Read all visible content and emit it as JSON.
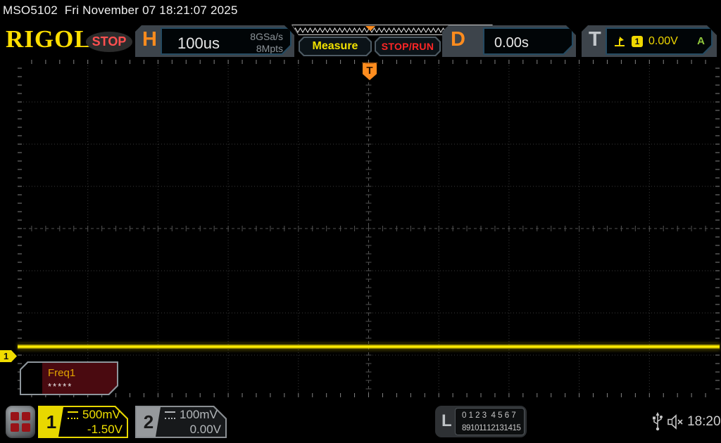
{
  "window": {
    "title": "MSO5102  Fri November 07 18:21:07 2025"
  },
  "header": {
    "brand": "RIGOL",
    "acq_status": "STOP",
    "horizontal": {
      "label": "H",
      "timebase": "100us",
      "sample_rate": "8GSa/s",
      "mem_depth": "8Mpts"
    },
    "measure_button": "Measure",
    "stoprun_button": "STOP/RUN",
    "delay": {
      "label": "D",
      "value": "0.00s"
    },
    "trigger": {
      "label": "T",
      "slope_icon": "rising-edge",
      "source_badge": "1",
      "level": "0.00V",
      "mode": "A",
      "indicator": "T"
    }
  },
  "graticule": {
    "h_divs": 10,
    "v_divs": 8,
    "trace": {
      "channel": 1,
      "shape": "flat-noisy-dc-line"
    }
  },
  "measurement_panel": {
    "title": "Freq1",
    "value": "*****"
  },
  "channel1": {
    "number": "1",
    "coupling": "DC",
    "scale": "500mV",
    "offset": "-1.50V"
  },
  "channel2": {
    "number": "2",
    "coupling": "DC",
    "scale": "100mV",
    "offset": "0.00V"
  },
  "logic": {
    "label": "L",
    "row1": "0 1 2 3  4 5 6 7",
    "row2": "8 9 10 11  12 13 14 15"
  },
  "status": {
    "time": "18:20"
  },
  "colors": {
    "channel1_yellow": "#f0e000",
    "channel2_gray": "#b4b8bb",
    "trigger_orange": "#ff8c1e",
    "stop_red": "#ff2626",
    "trigger_mode_green": "#90c83c",
    "measure_box_maroon": "#4a0a10",
    "brand_yellow": "#ffdf00"
  }
}
